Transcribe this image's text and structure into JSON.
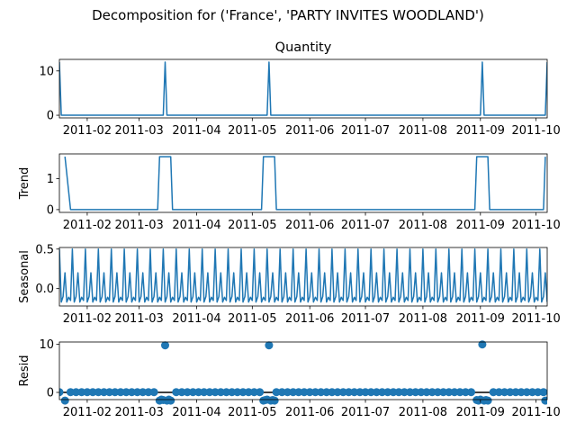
{
  "figure": {
    "suptitle": "Decomposition for ('France', 'PARTY INVITES WOODLAND')"
  },
  "colors": {
    "series": "#1f77b4",
    "axis": "#000000",
    "zero_line": "#000000"
  },
  "chart_data": [
    {
      "type": "line",
      "title": "Quantity",
      "ylabel": "",
      "xlim": [
        "2011-01-17",
        "2011-10-07"
      ],
      "ylim": [
        -0.6,
        12.6
      ],
      "yticks": [
        0,
        10
      ],
      "xticks": [
        "2011-02",
        "2011-03",
        "2011-04",
        "2011-05",
        "2011-06",
        "2011-07",
        "2011-08",
        "2011-09",
        "2011-10"
      ],
      "series": [
        {
          "points": [
            [
              "2011-01-17",
              12
            ],
            [
              "2011-01-18",
              0
            ],
            [
              "2011-03-14",
              0
            ],
            [
              "2011-03-15",
              12
            ],
            [
              "2011-03-16",
              0
            ],
            [
              "2011-05-09",
              0
            ],
            [
              "2011-05-10",
              12
            ],
            [
              "2011-05-11",
              0
            ],
            [
              "2011-09-01",
              0
            ],
            [
              "2011-09-02",
              12
            ],
            [
              "2011-09-03",
              0
            ],
            [
              "2011-10-06",
              0
            ],
            [
              "2011-10-07",
              12
            ]
          ]
        }
      ]
    },
    {
      "type": "line",
      "title": "",
      "ylabel": "Trend",
      "xlim": [
        "2011-01-17",
        "2011-10-07"
      ],
      "ylim": [
        -0.09,
        1.8
      ],
      "yticks": [
        0,
        1
      ],
      "xticks": [
        "2011-02",
        "2011-03",
        "2011-04",
        "2011-05",
        "2011-06",
        "2011-07",
        "2011-08",
        "2011-09",
        "2011-10"
      ],
      "series": [
        {
          "points": [
            [
              "2011-01-20",
              1.71
            ],
            [
              "2011-01-23",
              0
            ],
            [
              "2011-03-11",
              0
            ],
            [
              "2011-03-12",
              1.71
            ],
            [
              "2011-03-18",
              1.71
            ],
            [
              "2011-03-19",
              0
            ],
            [
              "2011-05-06",
              0
            ],
            [
              "2011-05-07",
              1.71
            ],
            [
              "2011-05-13",
              1.71
            ],
            [
              "2011-05-14",
              0
            ],
            [
              "2011-08-29",
              0
            ],
            [
              "2011-08-30",
              1.71
            ],
            [
              "2011-09-05",
              1.71
            ],
            [
              "2011-09-06",
              0
            ],
            [
              "2011-10-05",
              0
            ],
            [
              "2011-10-06",
              1.71
            ]
          ]
        }
      ]
    },
    {
      "type": "line",
      "title": "",
      "ylabel": "Seasonal",
      "xlim": [
        "2011-01-17",
        "2011-10-07"
      ],
      "ylim": [
        -0.22,
        0.52
      ],
      "yticks": [
        0.0,
        0.5
      ],
      "ytick_labels": [
        "0.0",
        "0.5"
      ],
      "xticks": [
        "2011-02",
        "2011-03",
        "2011-04",
        "2011-05",
        "2011-06",
        "2011-07",
        "2011-08",
        "2011-09",
        "2011-10"
      ],
      "period_days": 7,
      "series": [
        {
          "pattern": [
            0.5,
            -0.17,
            -0.1,
            0.2,
            -0.17,
            -0.11,
            -0.15
          ]
        }
      ]
    },
    {
      "type": "scatter",
      "title": "",
      "ylabel": "Resid",
      "xlim": [
        "2011-01-17",
        "2011-10-07"
      ],
      "ylim": [
        -1.5,
        10.5
      ],
      "yticks": [
        0,
        10
      ],
      "xticks": [
        "2011-02",
        "2011-03",
        "2011-04",
        "2011-05",
        "2011-06",
        "2011-07",
        "2011-08",
        "2011-09",
        "2011-10"
      ],
      "baseline": 0,
      "spikes": [
        [
          "2011-03-15",
          9.8
        ],
        [
          "2011-05-10",
          9.8
        ],
        [
          "2011-09-02",
          10.0
        ]
      ],
      "dips": [
        [
          "2011-01-20",
          -1.7
        ],
        [
          "2011-03-12",
          -1.7
        ],
        [
          "2011-03-13",
          -1.5
        ],
        [
          "2011-03-14",
          -1.6
        ],
        [
          "2011-03-16",
          -1.7
        ],
        [
          "2011-03-17",
          -1.5
        ],
        [
          "2011-03-18",
          -1.7
        ],
        [
          "2011-05-07",
          -1.7
        ],
        [
          "2011-05-08",
          -1.6
        ],
        [
          "2011-05-09",
          -1.5
        ],
        [
          "2011-05-11",
          -1.7
        ],
        [
          "2011-05-12",
          -1.6
        ],
        [
          "2011-05-13",
          -1.7
        ],
        [
          "2011-08-30",
          -1.6
        ],
        [
          "2011-08-31",
          -1.7
        ],
        [
          "2011-09-01",
          -1.5
        ],
        [
          "2011-09-03",
          -1.7
        ],
        [
          "2011-09-04",
          -1.6
        ],
        [
          "2011-09-05",
          -1.7
        ],
        [
          "2011-10-06",
          -1.7
        ]
      ],
      "marker_spacing_days": 3
    }
  ]
}
